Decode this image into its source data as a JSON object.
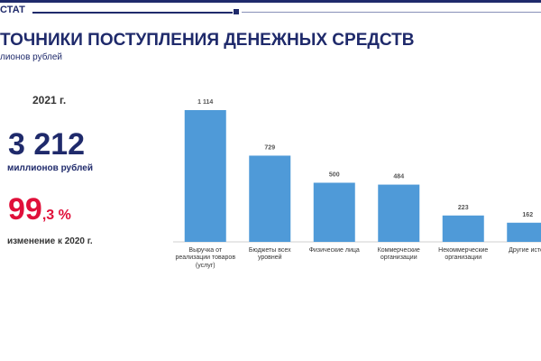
{
  "header": {
    "logo": "СТАТ",
    "title": "ТОЧНИКИ ПОСТУПЛЕНИЯ ДЕНЕЖНЫХ СРЕДСТВ",
    "subtitle": "лионов  рублей"
  },
  "kpi": {
    "year": "2021 г.",
    "total": "3 212",
    "total_unit": "миллионов рублей",
    "change_main": "99",
    "change_rest": ",3 %",
    "change_label": "изменение к 2020 г."
  },
  "chart_data": {
    "type": "bar",
    "categories": [
      "Выручка от реализации товаров (услуг)",
      "Бюджеты всех уровней",
      "Физические лица",
      "Коммерческие организации",
      "Некоммерческие организации",
      "Другие источ"
    ],
    "values": [
      1114,
      729,
      500,
      484,
      223,
      162
    ],
    "value_labels": [
      "1 114",
      "729",
      "500",
      "484",
      "223",
      "162"
    ],
    "color": "#4f9ad8"
  }
}
